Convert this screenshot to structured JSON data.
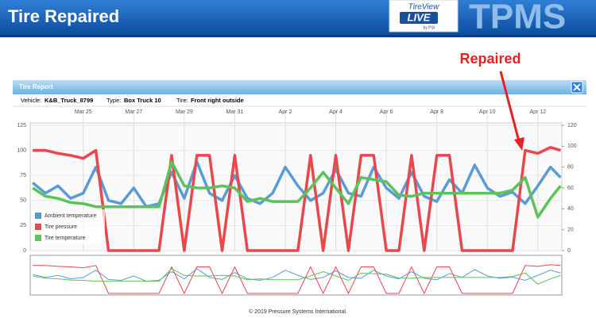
{
  "header": {
    "title": "Tire Repaired",
    "logo": "TireView",
    "logo_live": "LIVE",
    "logo_by": "by PSI",
    "brand": "TPMS"
  },
  "report": {
    "title": "Tire Report",
    "vehicle_label": "Vehicle:",
    "vehicle": "K&B_Truck_8799",
    "type_label": "Type:",
    "type": "Box Truck 10",
    "tire_label": "Tire:",
    "tire": "Front right outside"
  },
  "footer": "© 2019 Pressure Systems International.",
  "chart_data": {
    "type": "line",
    "annotation": "Repaired",
    "x": [
      23,
      23.5,
      24,
      24.5,
      25,
      25.5,
      26,
      26.5,
      27,
      27.5,
      28,
      28.5,
      29,
      29.5,
      30,
      30.5,
      31,
      31.5,
      32,
      32.5,
      33,
      33.5,
      34,
      34.5,
      35,
      35.5,
      36,
      36.5,
      37,
      37.5,
      38,
      38.5,
      39,
      39.5,
      40,
      40.5,
      41,
      41.5,
      42,
      42.5,
      43,
      43.5,
      43.9
    ],
    "xlim": [
      22.9,
      43.95
    ],
    "xticks": [
      {
        "value": 25,
        "label": "Mar 25"
      },
      {
        "value": 27,
        "label": "Mar 27"
      },
      {
        "value": 29,
        "label": "Mar 29"
      },
      {
        "value": 31,
        "label": "Mar 31"
      },
      {
        "value": 33,
        "label": "Apr 2"
      },
      {
        "value": 35,
        "label": "Apr 4"
      },
      {
        "value": 37,
        "label": "Apr 6"
      },
      {
        "value": 39,
        "label": "Apr 8"
      },
      {
        "value": 41,
        "label": "Apr 10"
      },
      {
        "value": 43,
        "label": "Apr 12"
      }
    ],
    "ylim": [
      0,
      125
    ],
    "yticks": [
      0,
      25,
      50,
      75,
      100,
      125
    ],
    "y2lim": [
      0,
      120
    ],
    "y2ticks": [
      0,
      20,
      40,
      60,
      80,
      100,
      120
    ],
    "grid": true,
    "legend": "bottom-left",
    "series": [
      {
        "name": "Ambient temperature",
        "color": "#5b9bd5",
        "axis": "y2",
        "values": [
          65,
          55,
          62,
          50,
          55,
          80,
          48,
          45,
          60,
          42,
          45,
          75,
          50,
          85,
          55,
          48,
          72,
          50,
          45,
          55,
          80,
          62,
          48,
          55,
          78,
          55,
          52,
          80,
          60,
          50,
          75,
          52,
          47,
          68,
          55,
          82,
          60,
          52,
          56,
          45,
          62,
          80,
          70
        ]
      },
      {
        "name": "Tire pressure",
        "color": "#e8474c",
        "values": [
          100,
          100,
          97,
          95,
          92,
          100,
          0,
          0,
          0,
          0,
          0,
          95,
          0,
          95,
          95,
          0,
          95,
          0,
          0,
          0,
          0,
          0,
          95,
          0,
          95,
          0,
          95,
          95,
          0,
          0,
          95,
          0,
          95,
          95,
          0,
          0,
          0,
          0,
          0,
          100,
          97,
          103,
          100
        ]
      },
      {
        "name": "Tire temperature",
        "color": "#5cc25c",
        "axis": "y2",
        "values": [
          60,
          52,
          50,
          46,
          45,
          42,
          42,
          42,
          42,
          42,
          42,
          85,
          62,
          60,
          60,
          62,
          60,
          47,
          50,
          47,
          47,
          47,
          60,
          75,
          60,
          45,
          70,
          68,
          66,
          53,
          52,
          55,
          55,
          55,
          55,
          55,
          55,
          55,
          58,
          70,
          32,
          50,
          62
        ]
      }
    ]
  }
}
